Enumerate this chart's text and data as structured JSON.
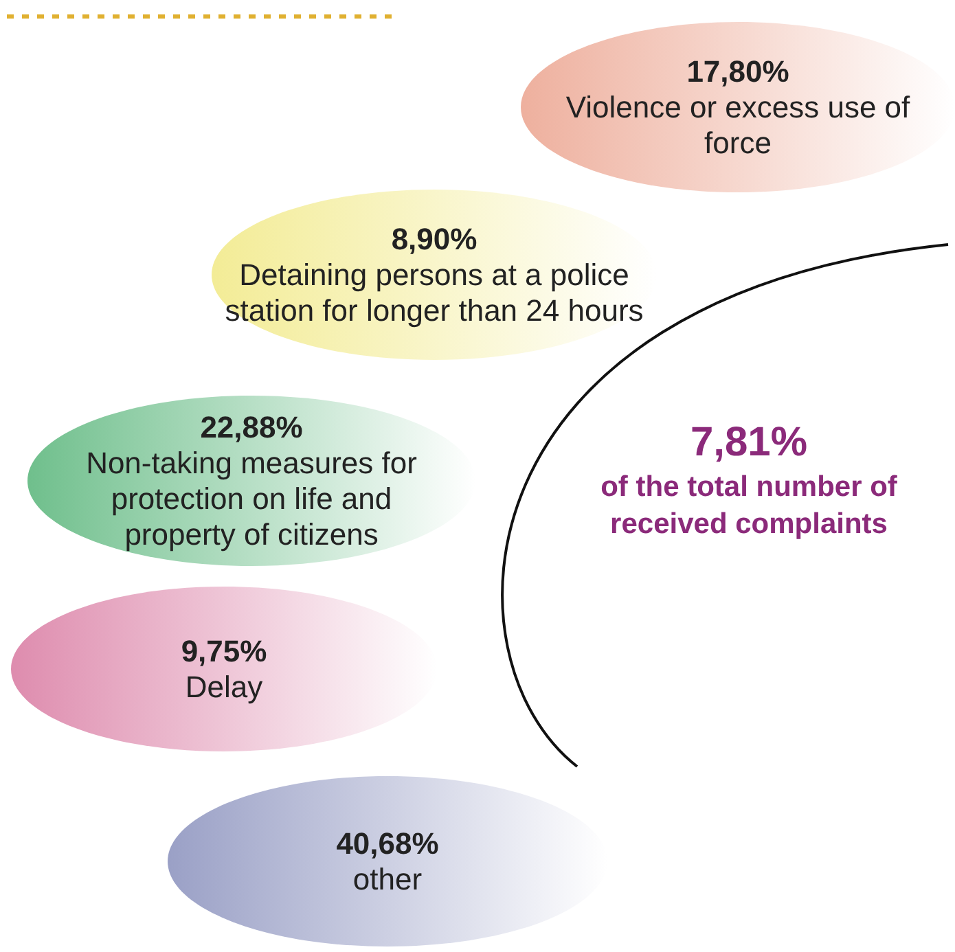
{
  "chart_data": {
    "type": "other",
    "categories": [
      "Violence or excess use of force",
      "Detaining persons at a police station for longer than 24 hours",
      "Non-taking measures for protection on life and property of citizens",
      "Delay",
      "other"
    ],
    "values": [
      17.8,
      8.9,
      22.88,
      9.75,
      40.68
    ],
    "value_labels": [
      "17,80%",
      "8,90%",
      "22,88%",
      "9,75%",
      "40,68%"
    ],
    "colors": [
      "#eeb09e",
      "#f3ec96",
      "#6fbf8c",
      "#de8cae",
      "#9aa0c6"
    ],
    "annotations": [
      "7,81%",
      "of the total number of received complaints"
    ]
  }
}
